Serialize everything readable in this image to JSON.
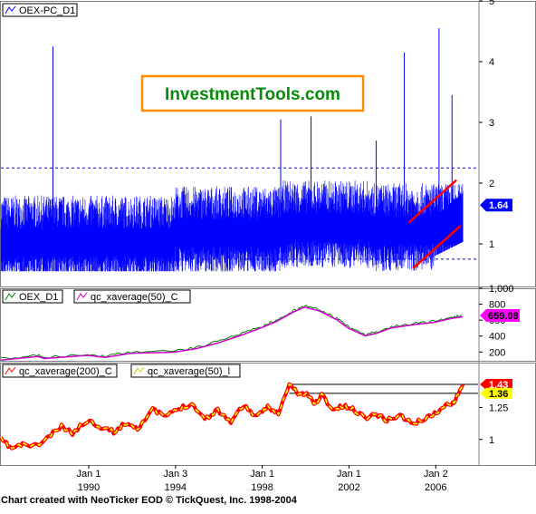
{
  "watermark": {
    "text": "InvestmentTools.com",
    "border_color": "#ff8c00",
    "text_color": "#0a8a0a"
  },
  "footer": {
    "text": "Chart created with NeoTicker EOD © TickQuest, Inc. 1998-2004"
  },
  "x_axis": {
    "ticks": [
      "Jan 1",
      "Jan 3",
      "Jan 1",
      "Jan 1",
      "Jan 2"
    ],
    "year_labels": [
      "1990",
      "1994",
      "1998",
      "2002",
      "2006"
    ]
  },
  "chart_data": [
    {
      "type": "line",
      "legend": [
        "OEX-PC_D1"
      ],
      "series": [
        {
          "name": "OEX-PC_D1",
          "color": "#0000ff"
        }
      ],
      "y_ticks": [
        "1",
        "2",
        "3",
        "4",
        "5"
      ],
      "ylim": [
        0.3,
        5
      ],
      "reference_lines": [
        0.75,
        2.25
      ],
      "spikes": [
        {
          "x": 1988.4,
          "y": 4.25
        },
        {
          "x": 1998.9,
          "y": 3.05
        },
        {
          "x": 2000.3,
          "y": 3.1
        },
        {
          "x": 2003.3,
          "y": 2.7
        },
        {
          "x": 2004.6,
          "y": 4.15
        },
        {
          "x": 2006.2,
          "y": 4.55
        },
        {
          "x": 2006.8,
          "y": 3.45
        }
      ],
      "trend_lines": [
        {
          "x": [
            2004.8,
            2007.0
          ],
          "y": [
            1.35,
            2.05
          ],
          "color": "#ff0000"
        },
        {
          "x": [
            2005.0,
            2007.2
          ],
          "y": [
            0.6,
            1.3
          ],
          "color": "#ff0000"
        }
      ],
      "last_value": "1.64",
      "badge_color": "#0000ff"
    },
    {
      "type": "line",
      "legend": [
        "OEX_D1",
        "qc_xaverage(50)_C"
      ],
      "series": [
        {
          "name": "OEX_D1",
          "color": "#008000"
        },
        {
          "name": "qc_xaverage(50)_C",
          "color": "#d000d0"
        }
      ],
      "y_ticks": [
        "200",
        "400",
        "600",
        "800",
        "1,000"
      ],
      "ylim": [
        90,
        1000
      ],
      "x": [
        1986.0,
        1987.7,
        1988.0,
        1990.0,
        1990.8,
        1992.0,
        1994.0,
        1995.0,
        1996.0,
        1997.0,
        1998.0,
        1998.7,
        1999.5,
        2000.0,
        2000.7,
        2001.5,
        2002.0,
        2002.8,
        2003.3,
        2004.0,
        2005.0,
        2006.0,
        2006.8,
        2007.3
      ],
      "values": [
        115,
        160,
        135,
        175,
        150,
        200,
        215,
        260,
        330,
        420,
        520,
        600,
        720,
        780,
        730,
        620,
        520,
        420,
        450,
        520,
        560,
        590,
        640,
        659
      ],
      "last_value": "659.08",
      "badge_color": "#ff00ff"
    },
    {
      "type": "line",
      "legend": [
        "qc_xaverage(200)_C",
        "qc_xaverage(50)_l"
      ],
      "series": [
        {
          "name": "qc_xaverage(200)_C",
          "color": "#ff0000"
        },
        {
          "name": "qc_xaverage(50)_l",
          "color": "#ffff00"
        }
      ],
      "y_ticks": [
        "1",
        "1.25"
      ],
      "ylim": [
        0.8,
        1.6
      ],
      "x": [
        1986.0,
        1986.5,
        1987.0,
        1987.7,
        1988.2,
        1988.8,
        1989.3,
        1990.0,
        1990.6,
        1991.2,
        1991.8,
        1992.3,
        1993.0,
        1993.6,
        1994.2,
        1994.8,
        1995.4,
        1996.0,
        1996.6,
        1997.2,
        1997.8,
        1998.3,
        1998.8,
        1999.3,
        1999.7,
        2000.1,
        2000.5,
        2000.8,
        2001.3,
        2001.8,
        2002.3,
        2002.8,
        2003.3,
        2003.8,
        2004.4,
        2005.0,
        2005.5,
        2006.0,
        2006.5,
        2006.9,
        2007.3
      ],
      "values": [
        1.0,
        0.93,
        0.96,
        0.95,
        1.02,
        1.1,
        1.05,
        1.15,
        1.1,
        1.06,
        1.13,
        1.09,
        1.23,
        1.18,
        1.24,
        1.28,
        1.16,
        1.23,
        1.14,
        1.27,
        1.17,
        1.26,
        1.2,
        1.43,
        1.36,
        1.35,
        1.28,
        1.35,
        1.23,
        1.26,
        1.23,
        1.17,
        1.2,
        1.15,
        1.19,
        1.12,
        1.16,
        1.2,
        1.26,
        1.3,
        1.43
      ],
      "reference_lines": [
        1.43,
        1.36
      ],
      "last_values": [
        "1.43",
        "1.36"
      ],
      "badge_colors": [
        "#ff0000",
        "#ffff00"
      ]
    }
  ]
}
